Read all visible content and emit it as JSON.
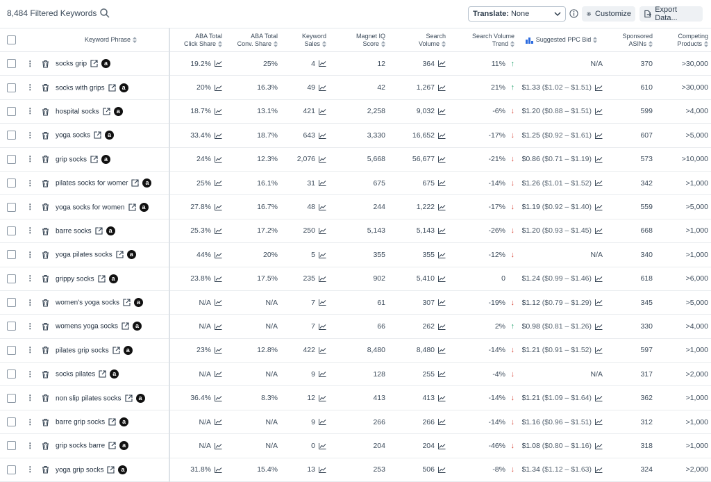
{
  "header": {
    "filtered_count": "8,484 Filtered Keywords",
    "translate_label": "Translate:",
    "translate_value": "None",
    "customize_label": "Customize",
    "export_label": "Export Data..."
  },
  "columns": {
    "keyword": "Keyword Phrase",
    "aba_click_1": "ABA Total",
    "aba_click_2": "Click Share",
    "aba_conv_1": "ABA Total",
    "aba_conv_2": "Conv. Share",
    "sales_1": "Keyword",
    "sales_2": "Sales",
    "miq_1": "Magnet IQ",
    "miq_2": "Score",
    "volume_1": "Search",
    "volume_2": "Volume",
    "trend_1": "Search Volume",
    "trend_2": "Trend",
    "ppc": "Suggested PPC Bid",
    "asins_1": "Sponsored",
    "asins_2": "ASINs",
    "competing_1": "Competing",
    "competing_2": "Products"
  },
  "rows": [
    {
      "kw": "socks grip",
      "click": "19.2%",
      "conv": "25%",
      "sales": "4",
      "miq": "12",
      "vol": "364",
      "trend": "11%",
      "dir": "up",
      "bid": "N/A",
      "range": "",
      "asins": "370",
      "comp": ">30,000"
    },
    {
      "kw": "socks with grips",
      "click": "20%",
      "conv": "16.3%",
      "sales": "49",
      "miq": "42",
      "vol": "1,267",
      "trend": "21%",
      "dir": "up",
      "bid": "$1.33",
      "range": "($1.02 – $1.51)",
      "asins": "610",
      "comp": ">30,000"
    },
    {
      "kw": "hospital socks",
      "click": "18.7%",
      "conv": "13.1%",
      "sales": "421",
      "miq": "2,258",
      "vol": "9,032",
      "trend": "-6%",
      "dir": "down",
      "bid": "$1.20",
      "range": "($0.88 – $1.51)",
      "asins": "599",
      "comp": ">4,000"
    },
    {
      "kw": "yoga socks",
      "click": "33.4%",
      "conv": "18.7%",
      "sales": "643",
      "miq": "3,330",
      "vol": "16,652",
      "trend": "-17%",
      "dir": "down",
      "bid": "$1.25",
      "range": "($0.92 – $1.61)",
      "asins": "607",
      "comp": ">5,000"
    },
    {
      "kw": "grip socks",
      "click": "24%",
      "conv": "12.3%",
      "sales": "2,076",
      "miq": "5,668",
      "vol": "56,677",
      "trend": "-21%",
      "dir": "down",
      "bid": "$0.86",
      "range": "($0.71 – $1.19)",
      "asins": "573",
      "comp": ">10,000"
    },
    {
      "kw": "pilates socks for womer",
      "click": "25%",
      "conv": "16.1%",
      "sales": "31",
      "miq": "675",
      "vol": "675",
      "trend": "-14%",
      "dir": "down",
      "bid": "$1.26",
      "range": "($1.01 – $1.52)",
      "asins": "342",
      "comp": ">1,000"
    },
    {
      "kw": "yoga socks for women",
      "click": "27.8%",
      "conv": "16.7%",
      "sales": "48",
      "miq": "244",
      "vol": "1,222",
      "trend": "-17%",
      "dir": "down",
      "bid": "$1.19",
      "range": "($0.92 – $1.40)",
      "asins": "559",
      "comp": ">5,000"
    },
    {
      "kw": "barre socks",
      "click": "25.3%",
      "conv": "17.2%",
      "sales": "250",
      "miq": "5,143",
      "vol": "5,143",
      "trend": "-26%",
      "dir": "down",
      "bid": "$1.20",
      "range": "($0.93 – $1.45)",
      "asins": "668",
      "comp": ">1,000"
    },
    {
      "kw": "yoga pilates socks",
      "click": "44%",
      "conv": "20%",
      "sales": "5",
      "miq": "355",
      "vol": "355",
      "trend": "-12%",
      "dir": "down",
      "bid": "N/A",
      "range": "",
      "asins": "340",
      "comp": ">1,000"
    },
    {
      "kw": "grippy socks",
      "click": "23.8%",
      "conv": "17.5%",
      "sales": "235",
      "miq": "902",
      "vol": "5,410",
      "trend": "0",
      "dir": "none",
      "bid": "$1.24",
      "range": "($0.99 – $1.46)",
      "asins": "618",
      "comp": ">6,000"
    },
    {
      "kw": "women's yoga socks",
      "click": "N/A",
      "conv": "N/A",
      "sales": "7",
      "miq": "61",
      "vol": "307",
      "trend": "-19%",
      "dir": "down",
      "bid": "$1.12",
      "range": "($0.79 – $1.29)",
      "asins": "345",
      "comp": ">5,000"
    },
    {
      "kw": "womens yoga socks",
      "click": "N/A",
      "conv": "N/A",
      "sales": "7",
      "miq": "66",
      "vol": "262",
      "trend": "2%",
      "dir": "up",
      "bid": "$0.98",
      "range": "($0.81 – $1.26)",
      "asins": "330",
      "comp": ">4,000"
    },
    {
      "kw": "pilates grip socks",
      "click": "23%",
      "conv": "12.8%",
      "sales": "422",
      "miq": "8,480",
      "vol": "8,480",
      "trend": "-14%",
      "dir": "down",
      "bid": "$1.21",
      "range": "($0.91 – $1.52)",
      "asins": "597",
      "comp": ">1,000"
    },
    {
      "kw": "socks pilates",
      "click": "N/A",
      "conv": "N/A",
      "sales": "9",
      "miq": "128",
      "vol": "255",
      "trend": "-4%",
      "dir": "down",
      "bid": "N/A",
      "range": "",
      "asins": "317",
      "comp": ">2,000"
    },
    {
      "kw": "non slip pilates socks",
      "click": "36.4%",
      "conv": "8.3%",
      "sales": "12",
      "miq": "413",
      "vol": "413",
      "trend": "-14%",
      "dir": "down",
      "bid": "$1.21",
      "range": "($1.09 – $1.64)",
      "asins": "362",
      "comp": ">1,000"
    },
    {
      "kw": "barre grip socks",
      "click": "N/A",
      "conv": "N/A",
      "sales": "9",
      "miq": "266",
      "vol": "266",
      "trend": "-14%",
      "dir": "down",
      "bid": "$1.16",
      "range": "($0.96 – $1.51)",
      "asins": "312",
      "comp": ">1,000"
    },
    {
      "kw": "grip socks barre",
      "click": "N/A",
      "conv": "N/A",
      "sales": "0",
      "miq": "204",
      "vol": "204",
      "trend": "-46%",
      "dir": "down",
      "bid": "$1.08",
      "range": "($0.80 – $1.16)",
      "asins": "318",
      "comp": ">1,000"
    },
    {
      "kw": "yoga grip socks",
      "click": "31.8%",
      "conv": "15.4%",
      "sales": "13",
      "miq": "253",
      "vol": "506",
      "trend": "-8%",
      "dir": "down",
      "bid": "$1.34",
      "range": "($1.12 – $1.63)",
      "asins": "324",
      "comp": ">2,000"
    }
  ],
  "icons": {
    "amazon_glyph": "a",
    "dots_glyph": "⋮",
    "up_glyph": "↑",
    "down_glyph": "↓"
  },
  "colors": {
    "up": "#22a06b",
    "down": "#d8483a"
  }
}
